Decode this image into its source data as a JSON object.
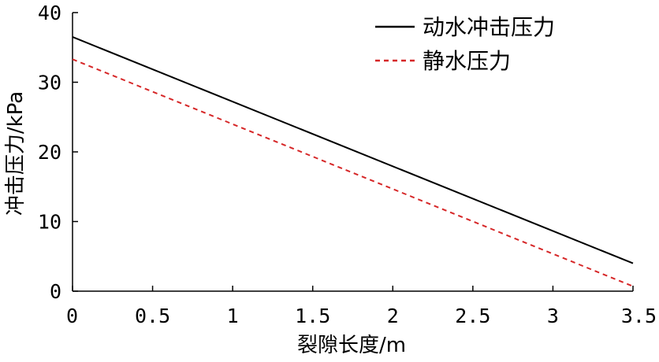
{
  "chart_data": {
    "type": "line",
    "title": "",
    "xlabel": "裂隙长度/m",
    "ylabel": "冲击压力/kPa",
    "xlim": [
      0,
      3.5
    ],
    "ylim": [
      0,
      40
    ],
    "xticks": [
      0,
      0.5,
      1,
      1.5,
      2,
      2.5,
      3,
      3.5
    ],
    "xtick_labels": [
      "0",
      "0.5",
      "1",
      "1.5",
      "2",
      "2.5",
      "3",
      "3.5"
    ],
    "yticks": [
      0,
      10,
      20,
      30,
      40
    ],
    "ytick_labels": [
      "0",
      "10",
      "20",
      "30",
      "40"
    ],
    "grid": false,
    "legend_position": "top-right",
    "series": [
      {
        "name": "动水冲击压力",
        "color": "#000000",
        "style": "solid",
        "x": [
          0,
          3.5
        ],
        "y": [
          36.5,
          4.0
        ]
      },
      {
        "name": "静水压力",
        "color": "#d62728",
        "style": "dashed",
        "x": [
          0,
          3.5
        ],
        "y": [
          33.3,
          0.7
        ]
      }
    ]
  }
}
